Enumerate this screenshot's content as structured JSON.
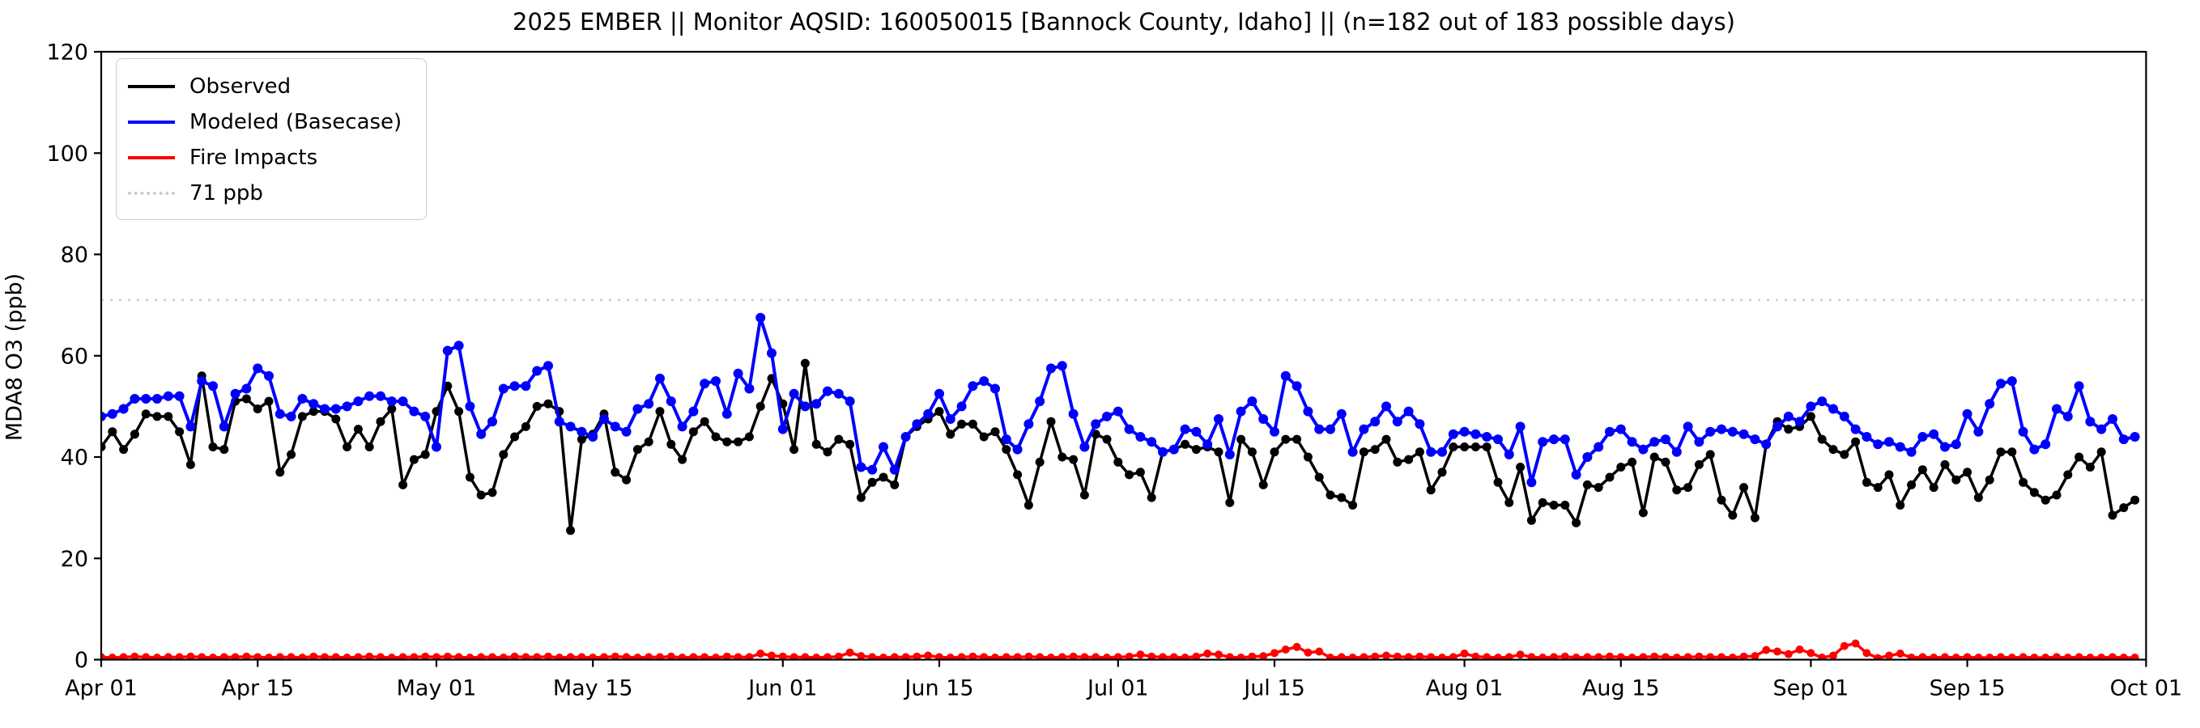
{
  "figure": {
    "title": "2025 EMBER || Monitor AQSID: 160050015 [Bannock County, Idaho] || (n=182 out of 183 possible days)",
    "ylabel": "MDA8 O3 (ppb)"
  },
  "legend": {
    "items": [
      {
        "label": "Observed",
        "color": "#000000",
        "line_style": "solid"
      },
      {
        "label": "Modeled (Basecase)",
        "color": "#0000ff",
        "line_style": "solid"
      },
      {
        "label": "Fire Impacts",
        "color": "#ff0000",
        "line_style": "solid"
      },
      {
        "label": "71 ppb",
        "color": "#cccccc",
        "line_style": "dotted"
      }
    ]
  },
  "chart_data": {
    "type": "line",
    "title": "2025 EMBER || Monitor AQSID: 160050015 [Bannock County, Idaho] || (n=182 out of 183 possible days)",
    "xlabel": "",
    "ylabel": "MDA8 O3 (ppb)",
    "ylim": [
      0,
      120
    ],
    "yticks": [
      0,
      20,
      40,
      60,
      80,
      100,
      120
    ],
    "x_total_days": 183,
    "x_start_date": "Apr 01",
    "x_end_date": "Oct 01",
    "xtick_labels": [
      "Apr 01",
      "Apr 15",
      "May 01",
      "May 15",
      "Jun 01",
      "Jun 15",
      "Jul 01",
      "Jul 15",
      "Aug 01",
      "Aug 15",
      "Sep 01",
      "Sep 15",
      "Oct 01"
    ],
    "xtick_day_index": [
      0,
      14,
      30,
      44,
      61,
      75,
      91,
      105,
      122,
      136,
      153,
      167,
      183
    ],
    "threshold": {
      "label": "71 ppb",
      "value": 71,
      "color": "#cccccc"
    },
    "grid": false,
    "legend_position": "upper-left",
    "series": [
      {
        "id": "observed",
        "name": "Observed",
        "color": "#000000",
        "values": [
          42,
          45,
          41.5,
          44.5,
          48.5,
          48,
          48,
          45,
          38.5,
          56,
          42,
          41.5,
          51,
          51.5,
          49.5,
          51,
          37,
          40.5,
          48,
          49,
          49,
          47.5,
          42,
          45.5,
          42,
          47,
          49.5,
          34.5,
          39.5,
          40.5,
          49,
          54,
          49,
          36,
          32.5,
          33,
          40.5,
          44,
          46,
          50,
          50.5,
          49,
          25.5,
          43.5,
          44.5,
          48.5,
          37,
          35.5,
          41.5,
          43,
          49,
          42.5,
          39.5,
          45,
          47,
          44,
          43,
          43,
          44,
          50,
          55.5,
          50.5,
          41.5,
          58.5,
          42.5,
          41,
          43.5,
          42.5,
          32,
          35,
          36,
          34.5,
          44,
          46,
          47.5,
          49,
          44.5,
          46.5,
          46.5,
          44,
          45,
          41.5,
          36.5,
          30.5,
          39,
          47,
          40,
          39.5,
          32.5,
          44.5,
          43.5,
          39,
          36.5,
          37,
          32,
          41,
          41.5,
          42.5,
          41.5,
          42,
          41,
          31,
          43.5,
          41,
          34.5,
          41,
          43.5,
          43.5,
          40,
          36,
          32.5,
          32,
          30.5,
          41,
          41.5,
          43.5,
          39,
          39.5,
          41,
          33.5,
          37,
          42,
          42,
          42,
          42,
          35,
          31,
          38,
          27.5,
          31,
          30.5,
          30.5,
          27,
          34.5,
          34,
          36,
          38,
          39,
          29,
          40,
          39,
          33.5,
          34,
          38.5,
          40.5,
          31.5,
          28.5,
          34,
          28,
          42.5,
          47,
          45.5,
          46,
          48,
          43.5,
          41.5,
          40.5,
          43,
          35,
          34,
          36.5,
          30.5,
          34.5,
          37.5,
          34,
          38.5,
          35.5,
          37,
          32,
          35.5,
          41,
          41,
          35,
          33,
          31.5,
          32.5,
          36.5,
          40,
          38,
          41,
          28.5,
          30,
          31.5
        ]
      },
      {
        "id": "modeled-basecase",
        "name": "Modeled (Basecase)",
        "color": "#0000ff",
        "values": [
          48,
          48.5,
          49.5,
          51.5,
          51.5,
          51.5,
          52,
          52,
          46,
          55,
          54,
          46,
          52.5,
          53.5,
          57.5,
          56,
          48.5,
          48,
          51.5,
          50.5,
          49.5,
          49.5,
          50,
          51,
          52,
          52,
          51,
          51,
          49,
          48,
          42,
          61,
          62,
          50,
          44.5,
          47,
          53.5,
          54,
          54,
          57,
          58,
          47,
          46,
          45,
          44,
          47.5,
          46,
          45,
          49.5,
          50.5,
          55.5,
          51,
          46,
          49,
          54.5,
          55,
          48.5,
          56.5,
          53.5,
          67.5,
          60.5,
          45.5,
          52.5,
          50,
          50.5,
          53,
          52.5,
          51,
          38,
          37.5,
          42,
          37.5,
          44,
          46.5,
          48.5,
          52.5,
          47.5,
          50,
          54,
          55,
          53.5,
          43.5,
          41.5,
          46.5,
          51,
          57.5,
          58,
          48.5,
          42,
          46.5,
          48,
          49,
          45.5,
          44,
          43,
          41,
          41.5,
          45.5,
          45,
          42.5,
          47.5,
          40.5,
          49,
          51,
          47.5,
          45,
          56,
          54,
          49,
          45.5,
          45.5,
          48.5,
          41,
          45.5,
          47,
          50,
          47,
          49,
          46.5,
          41,
          41,
          44.5,
          45,
          44.5,
          44,
          43.5,
          40.5,
          46,
          35,
          43,
          43.5,
          43.5,
          36.5,
          40,
          42,
          45,
          45.5,
          43,
          41.5,
          43,
          43.5,
          41,
          46,
          43,
          45,
          45.5,
          45,
          44.5,
          43.5,
          42.5,
          46,
          48,
          47,
          50,
          51,
          49.5,
          48,
          45.5,
          44,
          42.5,
          43,
          42,
          41,
          44,
          44.5,
          42,
          42.5,
          48.5,
          45,
          50.5,
          54.5,
          55,
          45,
          41.5,
          42.5,
          49.5,
          48,
          54,
          47,
          45.5,
          47.5,
          43.5,
          44
        ]
      },
      {
        "id": "fire-impacts",
        "name": "Fire Impacts",
        "color": "#ff0000",
        "values": [
          0.5,
          0.4,
          0.5,
          0.6,
          0.5,
          0.4,
          0.5,
          0.5,
          0.6,
          0.5,
          0.4,
          0.5,
          0.5,
          0.6,
          0.5,
          0.4,
          0.5,
          0.5,
          0.4,
          0.6,
          0.5,
          0.5,
          0.4,
          0.5,
          0.6,
          0.5,
          0.4,
          0.5,
          0.5,
          0.6,
          0.5,
          0.6,
          0.5,
          0.4,
          0.5,
          0.5,
          0.4,
          0.6,
          0.5,
          0.5,
          0.6,
          0.4,
          0.5,
          0.5,
          0.4,
          0.5,
          0.6,
          0.5,
          0.4,
          0.5,
          0.5,
          0.6,
          0.4,
          0.5,
          0.5,
          0.4,
          0.6,
          0.5,
          0.5,
          1.2,
          0.8,
          0.6,
          0.5,
          0.5,
          0.4,
          0.5,
          0.6,
          1.4,
          0.7,
          0.5,
          0.4,
          0.5,
          0.5,
          0.6,
          0.8,
          0.5,
          0.4,
          0.5,
          0.6,
          0.5,
          0.4,
          0.5,
          0.5,
          0.6,
          0.5,
          0.4,
          0.5,
          0.6,
          0.5,
          0.5,
          0.4,
          0.5,
          0.6,
          1.0,
          0.6,
          0.5,
          0.5,
          0.4,
          0.6,
          1.2,
          1.0,
          0.5,
          0.4,
          0.6,
          0.7,
          1.3,
          2.0,
          2.5,
          1.4,
          1.6,
          0.4,
          0.5,
          0.4,
          0.5,
          0.6,
          0.8,
          0.6,
          0.5,
          0.6,
          0.5,
          0.4,
          0.5,
          1.2,
          0.6,
          0.5,
          0.4,
          0.5,
          1.0,
          0.5,
          0.4,
          0.5,
          0.6,
          0.4,
          0.5,
          0.5,
          0.6,
          0.5,
          0.4,
          0.5,
          0.6,
          0.5,
          0.4,
          0.5,
          0.6,
          0.5,
          0.5,
          0.4,
          0.6,
          0.7,
          1.9,
          1.6,
          1.1,
          2.0,
          1.3,
          0.4,
          0.8,
          2.7,
          3.2,
          1.3,
          0.3,
          0.8,
          1.2,
          0.4,
          0.5,
          0.4,
          0.5,
          0.4,
          0.5,
          0.4,
          0.4,
          0.5,
          0.4,
          0.5,
          0.4,
          0.4,
          0.5,
          0.4,
          0.5,
          0.4,
          0.4,
          0.5,
          0.4,
          0.4
        ]
      }
    ]
  }
}
